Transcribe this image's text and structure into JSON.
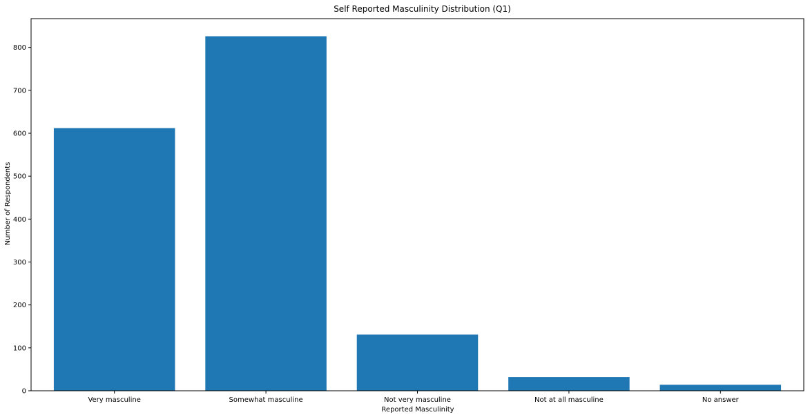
{
  "chart_data": {
    "type": "bar",
    "title": "Self Reported Masculinity Distribution (Q1)",
    "xlabel": "Reported Masculinity",
    "ylabel": "Number of Respondents",
    "categories": [
      "Very masculine",
      "Somewhat masculine",
      "Not very masculine",
      "Not at all masculine",
      "No answer"
    ],
    "values": [
      612,
      826,
      131,
      32,
      14
    ],
    "ylim": [
      0,
      867
    ],
    "yticks": [
      0,
      100,
      200,
      300,
      400,
      500,
      600,
      700,
      800
    ],
    "grid": false,
    "bar_color": "#1f77b4"
  }
}
